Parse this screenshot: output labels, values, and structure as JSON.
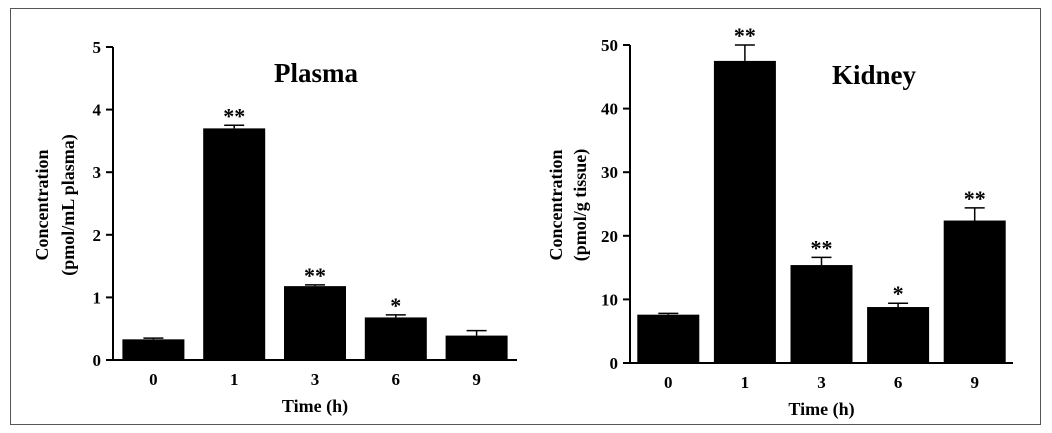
{
  "chart_data": [
    {
      "type": "bar",
      "title": "Plasma",
      "xlabel": "Time (h)",
      "ylabel": [
        "Concentration",
        "(pmol/mL plasma)"
      ],
      "categories": [
        "0",
        "1",
        "3",
        "6",
        "9"
      ],
      "values": [
        0.33,
        3.7,
        1.18,
        0.68,
        0.39
      ],
      "errors": [
        0.02,
        0.05,
        0.02,
        0.04,
        0.08
      ],
      "significance": [
        "",
        "**",
        "**",
        "*",
        ""
      ],
      "ylim": [
        0,
        5
      ],
      "yticks": [
        0,
        1,
        2,
        3,
        4,
        5
      ],
      "bar_color": "#000000"
    },
    {
      "type": "bar",
      "title": "Kidney",
      "xlabel": "Time (h)",
      "ylabel": [
        "Concentration",
        "(pmol/g tissue)"
      ],
      "categories": [
        "0",
        "1",
        "3",
        "6",
        "9"
      ],
      "values": [
        7.6,
        47.5,
        15.4,
        8.8,
        22.4
      ],
      "errors": [
        0.2,
        2.5,
        1.2,
        0.6,
        2.0
      ],
      "significance": [
        "",
        "**",
        "**",
        "*",
        "**"
      ],
      "ylim": [
        0,
        50
      ],
      "yticks": [
        0,
        10,
        20,
        30,
        40,
        50
      ],
      "bar_color": "#000000"
    }
  ]
}
